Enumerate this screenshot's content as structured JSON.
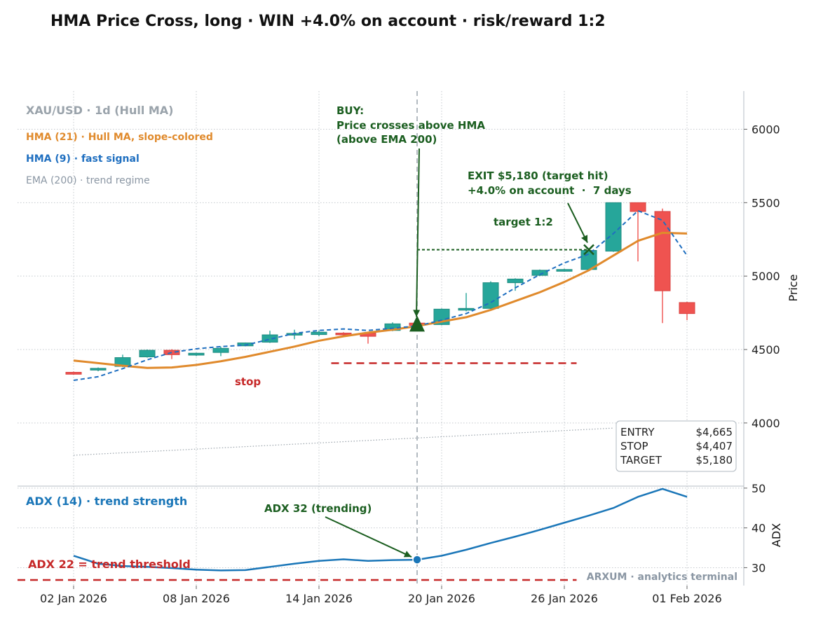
{
  "title": "HMA Price Cross, long · WIN +4.0% on account · risk/reward 1:2",
  "colors": {
    "bull": "#26a69a",
    "bear": "#ef5350",
    "hma_slow": "#e08a2c",
    "hma_fast": "#1f6fc0",
    "ema": "#9aa3ab",
    "adx": "#1a76b8",
    "signal": "#1b5e20",
    "stop": "#c62828",
    "muted": "#8a96a3"
  },
  "legend": {
    "symbol": "XAU/USD · 1d (Hull MA)",
    "hma_slow": "HMA (21) · Hull MA, slope-colored",
    "hma_fast": "HMA (9) · fast signal",
    "ema": "EMA (200) · trend regime"
  },
  "annotations": {
    "buy_lines": [
      "BUY:",
      "Price crosses above HMA",
      "(above EMA 200)"
    ],
    "exit_lines": [
      "EXIT $5,180 (target hit)",
      "+4.0% on account  ·  7 days"
    ],
    "target": "target 1:2",
    "stop": "stop",
    "adx_signal": "ADX 32 (trending)",
    "adx_threshold": "ADX 22 = trend threshold",
    "watermark": "ARXUM · analytics terminal"
  },
  "trade_box": {
    "rows": [
      {
        "label": "ENTRY",
        "value": "$4,665"
      },
      {
        "label": "STOP",
        "value": "$4,407"
      },
      {
        "label": "TARGET",
        "value": "$5,180"
      }
    ]
  },
  "chart_data": [
    {
      "type": "candlestick",
      "ylabel": "Price",
      "ylim": [
        3570,
        6260
      ],
      "yticks": [
        4000,
        4500,
        5000,
        5500,
        6000
      ],
      "x_tick_labels": [
        "02 Jan 2026",
        "08 Jan 2026",
        "14 Jan 2026",
        "20 Jan 2026",
        "26 Jan 2026",
        "01 Feb 2026"
      ],
      "x_tick_days": [
        0,
        6,
        12,
        18,
        24,
        30
      ],
      "day_range": [
        -2.7,
        32.6
      ],
      "grid": true,
      "candles": [
        {
          "day": 0,
          "o": 4345,
          "h": 4350,
          "l": 4328,
          "c": 4332
        },
        {
          "day": 1.2,
          "o": 4362,
          "h": 4378,
          "l": 4352,
          "c": 4372
        },
        {
          "day": 2.4,
          "o": 4385,
          "h": 4465,
          "l": 4380,
          "c": 4445
        },
        {
          "day": 3.6,
          "o": 4450,
          "h": 4500,
          "l": 4445,
          "c": 4495
        },
        {
          "day": 4.8,
          "o": 4495,
          "h": 4502,
          "l": 4435,
          "c": 4465
        },
        {
          "day": 6.0,
          "o": 4462,
          "h": 4478,
          "l": 4455,
          "c": 4475
        },
        {
          "day": 7.2,
          "o": 4480,
          "h": 4520,
          "l": 4455,
          "c": 4508
        },
        {
          "day": 8.4,
          "o": 4525,
          "h": 4548,
          "l": 4522,
          "c": 4545
        },
        {
          "day": 9.6,
          "o": 4550,
          "h": 4628,
          "l": 4545,
          "c": 4600
        },
        {
          "day": 10.8,
          "o": 4605,
          "h": 4635,
          "l": 4570,
          "c": 4610
        },
        {
          "day": 12.0,
          "o": 4602,
          "h": 4630,
          "l": 4590,
          "c": 4618
        },
        {
          "day": 13.2,
          "o": 4612,
          "h": 4618,
          "l": 4595,
          "c": 4610
        },
        {
          "day": 14.4,
          "o": 4612,
          "h": 4618,
          "l": 4540,
          "c": 4590
        },
        {
          "day": 15.6,
          "o": 4630,
          "h": 4685,
          "l": 4625,
          "c": 4675
        },
        {
          "day": 16.8,
          "o": 4680,
          "h": 4685,
          "l": 4640,
          "c": 4665
        },
        {
          "day": 18.0,
          "o": 4670,
          "h": 4780,
          "l": 4665,
          "c": 4775
        },
        {
          "day": 19.2,
          "o": 4775,
          "h": 4885,
          "l": 4760,
          "c": 4780
        },
        {
          "day": 20.4,
          "o": 4780,
          "h": 4965,
          "l": 4775,
          "c": 4955
        },
        {
          "day": 21.6,
          "o": 4955,
          "h": 4985,
          "l": 4900,
          "c": 4980
        },
        {
          "day": 22.8,
          "o": 5005,
          "h": 5045,
          "l": 5000,
          "c": 5040
        },
        {
          "day": 24.0,
          "o": 5040,
          "h": 5050,
          "l": 5030,
          "c": 5045
        },
        {
          "day": 25.2,
          "o": 5045,
          "h": 5180,
          "l": 5040,
          "c": 5175
        },
        {
          "day": 26.4,
          "o": 5170,
          "h": 5500,
          "l": 5165,
          "c": 5500
        },
        {
          "day": 27.6,
          "o": 5500,
          "h": 5500,
          "l": 5100,
          "c": 5440
        },
        {
          "day": 28.8,
          "o": 5440,
          "h": 5460,
          "l": 4680,
          "c": 4900
        },
        {
          "day": 30.0,
          "o": 4820,
          "h": 4825,
          "l": 4700,
          "c": 4745
        }
      ],
      "series": [
        {
          "name": "HMA (21) · Hull MA, slope-colored",
          "points": [
            [
              0,
              4425
            ],
            [
              2.4,
              4390
            ],
            [
              3.6,
              4375
            ],
            [
              4.8,
              4378
            ],
            [
              6.0,
              4395
            ],
            [
              7.2,
              4420
            ],
            [
              8.4,
              4450
            ],
            [
              9.6,
              4485
            ],
            [
              10.8,
              4520
            ],
            [
              12.0,
              4560
            ],
            [
              13.2,
              4590
            ],
            [
              14.4,
              4615
            ],
            [
              15.6,
              4635
            ],
            [
              16.8,
              4660
            ],
            [
              18.0,
              4690
            ],
            [
              19.2,
              4720
            ],
            [
              20.4,
              4770
            ],
            [
              21.6,
              4830
            ],
            [
              22.8,
              4890
            ],
            [
              24.0,
              4960
            ],
            [
              25.2,
              5040
            ],
            [
              26.4,
              5140
            ],
            [
              27.6,
              5240
            ],
            [
              28.8,
              5295
            ],
            [
              30.0,
              5290
            ]
          ]
        },
        {
          "name": "HMA (9) · fast signal",
          "points": [
            [
              0,
              4290
            ],
            [
              1.2,
              4315
            ],
            [
              2.4,
              4370
            ],
            [
              3.6,
              4430
            ],
            [
              4.8,
              4480
            ],
            [
              6.0,
              4505
            ],
            [
              7.2,
              4520
            ],
            [
              8.4,
              4530
            ],
            [
              9.6,
              4570
            ],
            [
              10.8,
              4610
            ],
            [
              12.0,
              4630
            ],
            [
              13.2,
              4640
            ],
            [
              14.4,
              4630
            ],
            [
              15.6,
              4645
            ],
            [
              16.8,
              4660
            ],
            [
              18.0,
              4700
            ],
            [
              19.2,
              4745
            ],
            [
              20.4,
              4820
            ],
            [
              21.6,
              4920
            ],
            [
              22.8,
              5010
            ],
            [
              24.0,
              5090
            ],
            [
              25.2,
              5150
            ],
            [
              26.4,
              5290
            ],
            [
              27.6,
              5445
            ],
            [
              28.8,
              5380
            ],
            [
              30.0,
              5140
            ]
          ]
        },
        {
          "name": "EMA (200) · trend regime",
          "points": [
            [
              0,
              3780
            ],
            [
              26.4,
              3965
            ]
          ]
        }
      ],
      "signals": {
        "entry": {
          "day": 16.8,
          "price": 4665
        },
        "stop": {
          "price": 4407,
          "day_range": [
            12.6,
            24.6
          ]
        },
        "target": {
          "price": 5180,
          "day_range": [
            16.8,
            25.2
          ]
        },
        "exit": {
          "day": 25.2,
          "price": 5180
        }
      }
    },
    {
      "type": "line",
      "ylabel": "ADX",
      "ylim": [
        25.5,
        50.5
      ],
      "yticks": [
        30,
        40,
        50
      ],
      "threshold": 22,
      "series": [
        {
          "name": "ADX (14) · trend strength",
          "points": [
            [
              0,
              33
            ],
            [
              1.2,
              31
            ],
            [
              2.4,
              30.4
            ],
            [
              3.6,
              30.2
            ],
            [
              4.8,
              29.9
            ],
            [
              6.0,
              29.5
            ],
            [
              7.2,
              29.3
            ],
            [
              8.4,
              29.4
            ],
            [
              9.6,
              30.2
            ],
            [
              10.8,
              31
            ],
            [
              12.0,
              31.7
            ],
            [
              13.2,
              32.1
            ],
            [
              14.4,
              31.7
            ],
            [
              15.6,
              31.9
            ],
            [
              16.8,
              32
            ],
            [
              18.0,
              33
            ],
            [
              19.2,
              34.5
            ],
            [
              20.4,
              36.2
            ],
            [
              21.6,
              37.8
            ],
            [
              22.8,
              39.5
            ],
            [
              24.0,
              41.3
            ],
            [
              25.2,
              43.1
            ],
            [
              26.4,
              45
            ],
            [
              27.6,
              47.8
            ],
            [
              28.8,
              49.8
            ],
            [
              30.0,
              47.8
            ]
          ]
        }
      ],
      "signal_point": {
        "day": 16.8,
        "value": 32
      }
    }
  ]
}
